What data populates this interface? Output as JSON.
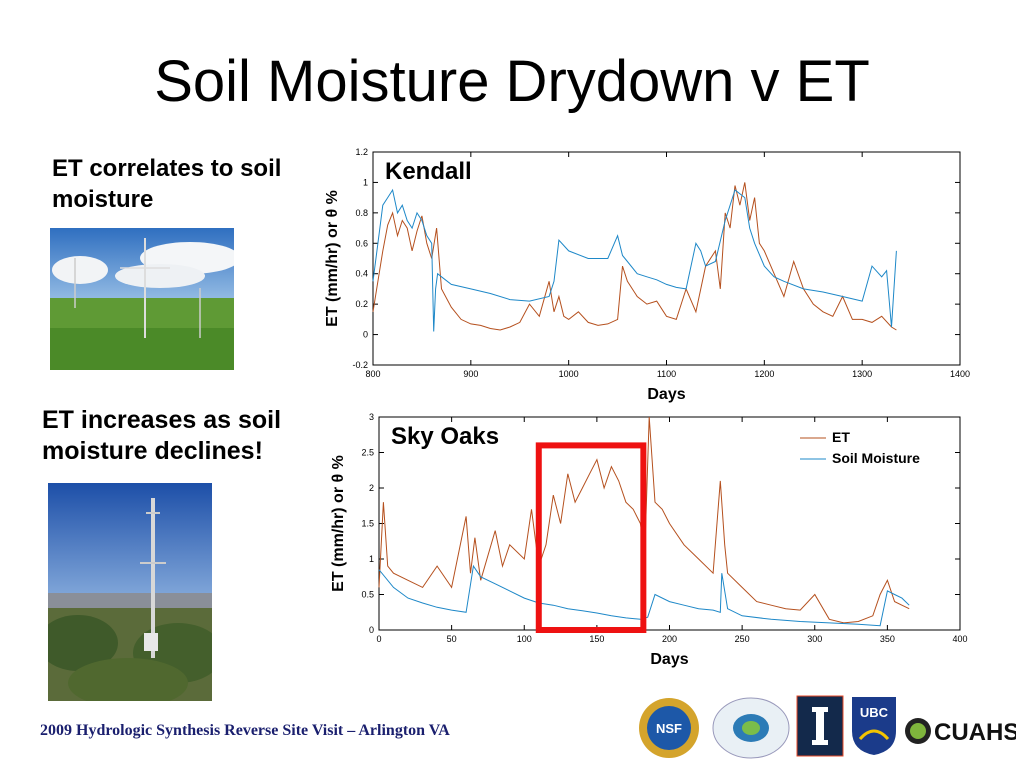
{
  "slide": {
    "title": "Soil Moisture Drydown v ET",
    "bullets": [
      "ET correlates to soil moisture",
      "ET increases as soil moisture declines!"
    ],
    "footer": "2009 Hydrologic Synthesis Reverse Site Visit – Arlington VA",
    "logos": [
      "NSF",
      "Predictability Synthesis Hydroclimate",
      "Illinois",
      "UBC",
      "CUAHSI"
    ]
  },
  "colors": {
    "et": "#b5501e",
    "soil_moisture": "#1e88c8",
    "highlight_box": "#ee1111",
    "footer": "#1a1f6e"
  },
  "chart_data": [
    {
      "type": "line",
      "title": "Kendall",
      "xlabel": "Days",
      "ylabel": "ET (mm/hr) or θ %",
      "xlim": [
        800,
        1400
      ],
      "ylim": [
        -0.2,
        1.2
      ],
      "xticks": [
        "800",
        "900",
        "1000",
        "1100",
        "1200",
        "1300",
        "1400"
      ],
      "yticks": [
        "-0.2",
        "0",
        "0.2",
        "0.4",
        "0.6",
        "0.8",
        "1",
        "1.2"
      ],
      "series": [
        {
          "name": "ET",
          "x": [
            800,
            805,
            810,
            815,
            820,
            825,
            830,
            835,
            840,
            845,
            850,
            855,
            860,
            865,
            870,
            880,
            890,
            900,
            910,
            920,
            930,
            940,
            950,
            960,
            970,
            980,
            985,
            990,
            995,
            1000,
            1010,
            1020,
            1030,
            1040,
            1050,
            1055,
            1060,
            1070,
            1080,
            1090,
            1100,
            1110,
            1120,
            1130,
            1140,
            1150,
            1155,
            1160,
            1165,
            1170,
            1175,
            1180,
            1185,
            1190,
            1195,
            1200,
            1210,
            1220,
            1230,
            1240,
            1250,
            1260,
            1270,
            1280,
            1290,
            1300,
            1310,
            1320,
            1330,
            1335
          ],
          "y": [
            0.15,
            0.35,
            0.55,
            0.72,
            0.8,
            0.65,
            0.75,
            0.7,
            0.55,
            0.68,
            0.78,
            0.6,
            0.5,
            0.7,
            0.3,
            0.18,
            0.1,
            0.07,
            0.06,
            0.04,
            0.03,
            0.05,
            0.08,
            0.2,
            0.12,
            0.35,
            0.15,
            0.25,
            0.12,
            0.1,
            0.15,
            0.08,
            0.06,
            0.07,
            0.1,
            0.45,
            0.35,
            0.25,
            0.2,
            0.22,
            0.12,
            0.1,
            0.3,
            0.15,
            0.45,
            0.55,
            0.3,
            0.8,
            0.7,
            0.98,
            0.85,
            1.0,
            0.75,
            0.9,
            0.6,
            0.55,
            0.4,
            0.25,
            0.48,
            0.3,
            0.2,
            0.15,
            0.12,
            0.25,
            0.1,
            0.1,
            0.08,
            0.12,
            0.05,
            0.03
          ]
        },
        {
          "name": "Soil Moisture",
          "x": [
            800,
            805,
            810,
            815,
            820,
            825,
            830,
            835,
            840,
            845,
            850,
            855,
            860,
            862,
            864,
            866,
            870,
            880,
            900,
            920,
            940,
            960,
            980,
            985,
            990,
            1000,
            1020,
            1040,
            1050,
            1055,
            1060,
            1070,
            1080,
            1090,
            1100,
            1110,
            1120,
            1130,
            1135,
            1140,
            1150,
            1160,
            1170,
            1180,
            1185,
            1190,
            1200,
            1210,
            1220,
            1240,
            1260,
            1280,
            1300,
            1310,
            1320,
            1325,
            1330,
            1335
          ],
          "y": [
            0.35,
            0.6,
            0.85,
            0.9,
            0.95,
            0.8,
            0.85,
            0.75,
            0.7,
            0.8,
            0.75,
            0.65,
            0.6,
            0.02,
            0.3,
            0.4,
            0.38,
            0.33,
            0.3,
            0.27,
            0.23,
            0.22,
            0.25,
            0.35,
            0.62,
            0.55,
            0.5,
            0.5,
            0.65,
            0.52,
            0.48,
            0.4,
            0.38,
            0.36,
            0.33,
            0.31,
            0.3,
            0.6,
            0.55,
            0.45,
            0.48,
            0.75,
            0.95,
            0.9,
            0.7,
            0.6,
            0.45,
            0.38,
            0.35,
            0.3,
            0.28,
            0.25,
            0.22,
            0.45,
            0.38,
            0.42,
            0.05,
            0.55
          ]
        }
      ]
    },
    {
      "type": "line",
      "title": "Sky Oaks",
      "xlabel": "Days",
      "ylabel": "ET (mm/hr) or θ %",
      "xlim": [
        0,
        400
      ],
      "ylim": [
        0,
        3
      ],
      "xticks": [
        "0",
        "50",
        "100",
        "150",
        "200",
        "250",
        "300",
        "350",
        "400"
      ],
      "yticks": [
        "0",
        "0.5",
        "1",
        "1.5",
        "2",
        "2.5",
        "3"
      ],
      "legend": [
        "ET",
        "Soil Moisture"
      ],
      "legend_position": "top-right",
      "highlight_region": {
        "x": [
          110,
          182
        ],
        "y": [
          0,
          2.6
        ]
      },
      "series": [
        {
          "name": "ET",
          "x": [
            0,
            3,
            6,
            10,
            20,
            30,
            40,
            50,
            60,
            63,
            66,
            70,
            80,
            85,
            90,
            100,
            105,
            110,
            115,
            120,
            125,
            130,
            135,
            140,
            145,
            150,
            155,
            160,
            165,
            170,
            175,
            180,
            183,
            186,
            190,
            195,
            200,
            210,
            220,
            230,
            235,
            238,
            240,
            250,
            260,
            270,
            280,
            290,
            300,
            310,
            320,
            330,
            340,
            345,
            350,
            355,
            360,
            365
          ],
          "y": [
            0.6,
            1.8,
            0.9,
            0.8,
            0.7,
            0.6,
            0.9,
            0.6,
            1.6,
            0.8,
            1.3,
            0.7,
            1.4,
            0.9,
            1.2,
            1.0,
            1.7,
            0.9,
            1.2,
            1.9,
            1.5,
            2.2,
            1.8,
            2.0,
            2.2,
            2.4,
            2.0,
            2.3,
            2.1,
            1.8,
            1.7,
            1.5,
            1.1,
            3.0,
            1.8,
            1.7,
            1.5,
            1.2,
            1.0,
            0.8,
            2.1,
            1.2,
            0.8,
            0.6,
            0.4,
            0.35,
            0.3,
            0.28,
            0.5,
            0.15,
            0.1,
            0.12,
            0.2,
            0.5,
            0.7,
            0.4,
            0.35,
            0.3
          ]
        },
        {
          "name": "Soil Moisture",
          "x": [
            0,
            10,
            20,
            30,
            40,
            50,
            60,
            65,
            70,
            80,
            90,
            100,
            110,
            120,
            130,
            140,
            150,
            160,
            170,
            180,
            185,
            190,
            200,
            210,
            220,
            230,
            235,
            236,
            240,
            250,
            270,
            290,
            310,
            330,
            345,
            350,
            355,
            360,
            365
          ],
          "y": [
            0.85,
            0.6,
            0.45,
            0.38,
            0.32,
            0.28,
            0.25,
            0.9,
            0.75,
            0.65,
            0.55,
            0.45,
            0.38,
            0.35,
            0.3,
            0.27,
            0.24,
            0.2,
            0.17,
            0.15,
            0.18,
            0.5,
            0.4,
            0.35,
            0.3,
            0.28,
            0.25,
            0.8,
            0.3,
            0.2,
            0.15,
            0.12,
            0.1,
            0.08,
            0.06,
            0.55,
            0.5,
            0.45,
            0.35
          ]
        }
      ]
    }
  ]
}
